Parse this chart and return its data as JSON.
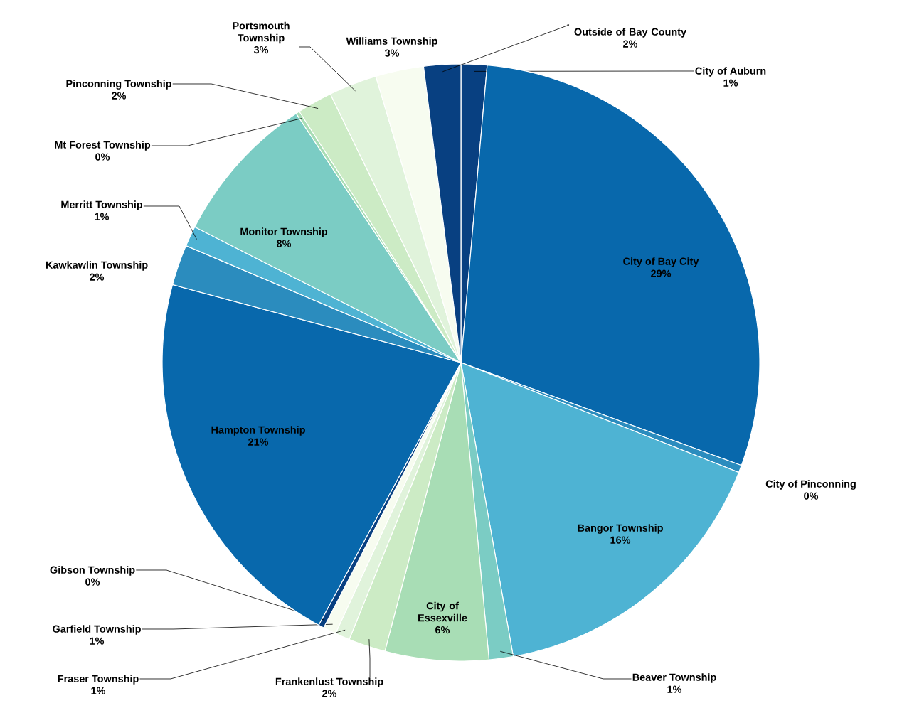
{
  "chart_data": {
    "type": "pie",
    "categories": [
      "City of Auburn",
      "City of Bay City",
      "City of Pinconning",
      "Bangor Township",
      "Beaver Township",
      "City of Essexville",
      "Frankenlust Township",
      "Fraser Township",
      "Garfield Township",
      "Gibson Township",
      "Hampton Township",
      "Kawkawlin Township",
      "Merritt Township",
      "Monitor Township",
      "Mt Forest Township",
      "Pinconning Township",
      "Portsmouth Township",
      "Williams Township",
      "Outside of Bay County"
    ],
    "values": [
      1.4,
      29.2,
      0.4,
      16.2,
      1.3,
      5.6,
      2.0,
      0.8,
      0.7,
      0.3,
      21.3,
      2.2,
      1.1,
      8.2,
      0.2,
      1.9,
      2.6,
      2.6,
      2.0
    ],
    "value_labels": [
      "1%",
      "29%",
      "0%",
      "16%",
      "1%",
      "6%",
      "2%",
      "1%",
      "1%",
      "0%",
      "21%",
      "2%",
      "1%",
      "8%",
      "0%",
      "2%",
      "3%",
      "3%",
      "2%"
    ],
    "colors": [
      "#084081",
      "#0868ac",
      "#2b8cbe",
      "#4eb3d3",
      "#7bccc4",
      "#a8ddb5",
      "#ccebc5",
      "#e0f3db",
      "#f7fcf0",
      "#084081",
      "#0868ac",
      "#2b8cbe",
      "#4eb3d3",
      "#7bccc4",
      "#a8ddb5",
      "#ccebc5",
      "#e0f3db",
      "#f7fcf0",
      "#084081"
    ]
  }
}
